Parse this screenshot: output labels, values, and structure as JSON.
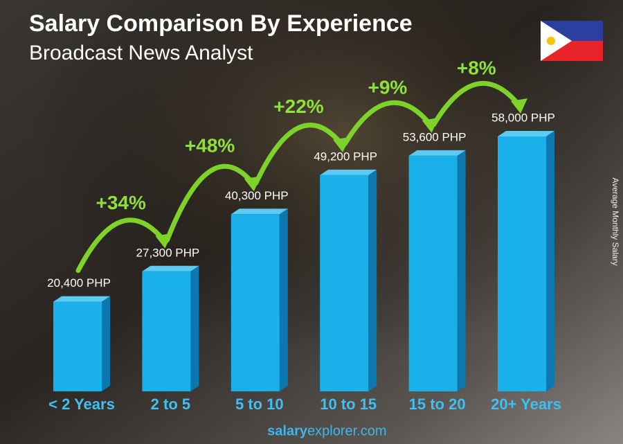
{
  "chart_data": {
    "type": "bar3d",
    "title": "Salary Comparison By Experience",
    "subtitle": "Broadcast News Analyst",
    "y_label": "Average Monthly Salary",
    "categories": [
      "< 2 Years",
      "2 to 5",
      "5 to 10",
      "10 to 15",
      "15 to 20",
      "20+ Years"
    ],
    "values": [
      20400,
      27300,
      40300,
      49200,
      53600,
      58000
    ],
    "value_labels": [
      "20,400 PHP",
      "27,300 PHP",
      "40,300 PHP",
      "49,200 PHP",
      "53,600 PHP",
      "58,000 PHP"
    ],
    "changes": [
      "+34%",
      "+48%",
      "+22%",
      "+9%",
      "+8%"
    ],
    "color": "#1ab0ea"
  },
  "footer": {
    "brand": "salary",
    "domain": "explorer.com"
  }
}
